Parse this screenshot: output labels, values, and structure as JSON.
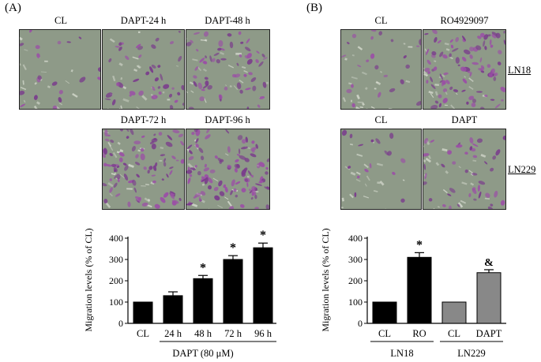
{
  "panelA": {
    "label": "(A)",
    "images": [
      {
        "label": "CL",
        "density": 0.08
      },
      {
        "label": "DAPT-24 h",
        "density": 0.28
      },
      {
        "label": "DAPT-48 h",
        "density": 0.45
      },
      {
        "label": "DAPT-72 h",
        "density": 0.7
      },
      {
        "label": "DAPT-96 h",
        "density": 0.85
      }
    ],
    "chart": {
      "ylabel": "Migration levels (% of CL)",
      "xgroup_label": "DAPT (80 μM)"
    }
  },
  "panelB": {
    "label": "(B)",
    "images": [
      {
        "label": "CL",
        "density": 0.12
      },
      {
        "label": "RO4929097",
        "density": 0.75
      },
      {
        "label": "CL",
        "density": 0.05
      },
      {
        "label": "DAPT",
        "density": 0.3
      }
    ],
    "side_labels": [
      "LN18",
      "LN229"
    ],
    "chart": {
      "ylabel": "Migration levels (% of CL)"
    }
  },
  "chart_data": [
    {
      "type": "bar",
      "title": "",
      "xlabel": "DAPT (80 μM)",
      "ylabel": "Migration levels (% of CL)",
      "ylim": [
        0,
        400
      ],
      "yticks": [
        0,
        100,
        200,
        300,
        400
      ],
      "categories": [
        "CL",
        "24 h",
        "48 h",
        "72 h",
        "96 h"
      ],
      "values": [
        100,
        130,
        210,
        300,
        355
      ],
      "errors": [
        0,
        18,
        15,
        18,
        22
      ],
      "annotations": [
        "",
        "",
        "*",
        "*",
        "*"
      ],
      "colors": [
        "#000000",
        "#000000",
        "#000000",
        "#000000",
        "#000000"
      ]
    },
    {
      "type": "bar",
      "title": "",
      "xlabel": "",
      "ylabel": "Migration levels (% of CL)",
      "ylim": [
        0,
        400
      ],
      "yticks": [
        0,
        100,
        200,
        300,
        400
      ],
      "categories": [
        "CL",
        "RO",
        "CL",
        "DAPT"
      ],
      "values": [
        100,
        310,
        100,
        238
      ],
      "errors": [
        0,
        22,
        0,
        14
      ],
      "annotations": [
        "",
        "*",
        "",
        "&"
      ],
      "colors": [
        "#000000",
        "#000000",
        "#888888",
        "#888888"
      ],
      "groups": [
        {
          "label": "LN18",
          "members": [
            0,
            1
          ]
        },
        {
          "label": "LN229",
          "members": [
            2,
            3
          ]
        }
      ]
    }
  ]
}
